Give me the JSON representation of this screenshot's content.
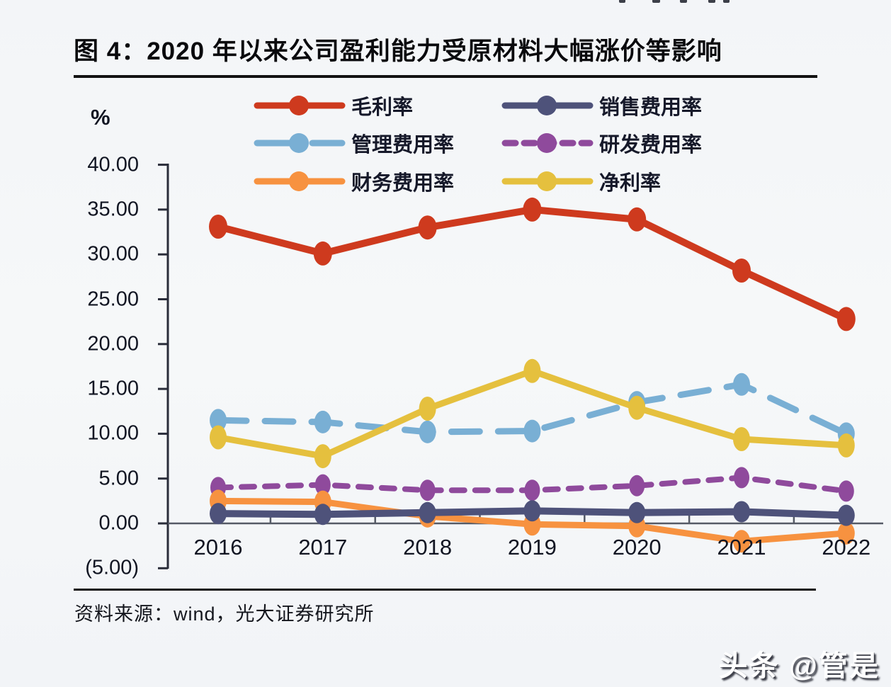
{
  "title": "图 4：2020 年以来公司盈利能力受原材料大幅涨价等影响",
  "source_note": "资料来源：wind，光大证券研究所",
  "watermark": "头条 @管是",
  "colors": {
    "gross_margin": "#ce3a1e",
    "selling_expense": "#4e527a",
    "admin_expense": "#79afd4",
    "rd_expense": "#8f4a9c",
    "finance_expense": "#f79240",
    "net_margin": "#e5c03e",
    "axis": "#2a2d3a",
    "title_rule": "#121212"
  },
  "chart_data": {
    "type": "line",
    "title": "图 4：2020 年以来公司盈利能力受原材料大幅涨价等影响",
    "unit_label": "%",
    "categories": [
      "2016",
      "2017",
      "2018",
      "2019",
      "2020",
      "2021",
      "2022"
    ],
    "series": [
      {
        "name": "毛利率",
        "color": "#ce3a1e",
        "line_style": "solid",
        "values": [
          33.1,
          30.1,
          33.0,
          35.0,
          33.9,
          28.2,
          22.8
        ]
      },
      {
        "name": "销售费用率",
        "color": "#4e527a",
        "line_style": "solid",
        "values": [
          1.1,
          1.0,
          1.2,
          1.4,
          1.2,
          1.3,
          0.9
        ]
      },
      {
        "name": "管理费用率",
        "color": "#79afd4",
        "line_style": "dashed",
        "values": [
          11.5,
          11.3,
          10.2,
          10.3,
          13.5,
          15.5,
          10.0
        ]
      },
      {
        "name": "研发费用率",
        "color": "#8f4a9c",
        "line_style": "dashed",
        "values": [
          4.0,
          4.3,
          3.7,
          3.7,
          4.2,
          5.1,
          3.6
        ]
      },
      {
        "name": "财务费用率",
        "color": "#f79240",
        "line_style": "solid",
        "values": [
          2.5,
          2.4,
          0.8,
          -0.1,
          -0.3,
          -2.0,
          -1.1
        ]
      },
      {
        "name": "净利率",
        "color": "#e5c03e",
        "line_style": "solid",
        "values": [
          9.6,
          7.5,
          12.8,
          17.0,
          12.9,
          9.4,
          8.7
        ]
      }
    ],
    "y_ticks": [
      "40.00",
      "35.00",
      "30.00",
      "25.00",
      "20.00",
      "15.00",
      "10.00",
      "5.00",
      "0.00",
      "(5.00)"
    ],
    "y_tick_values": [
      40,
      35,
      30,
      25,
      20,
      15,
      10,
      5,
      0,
      -5
    ],
    "ylim": [
      -5,
      40
    ],
    "xlabel": "",
    "ylabel": "%",
    "grid": false,
    "legend_position": "top",
    "legend_columns": 2
  }
}
